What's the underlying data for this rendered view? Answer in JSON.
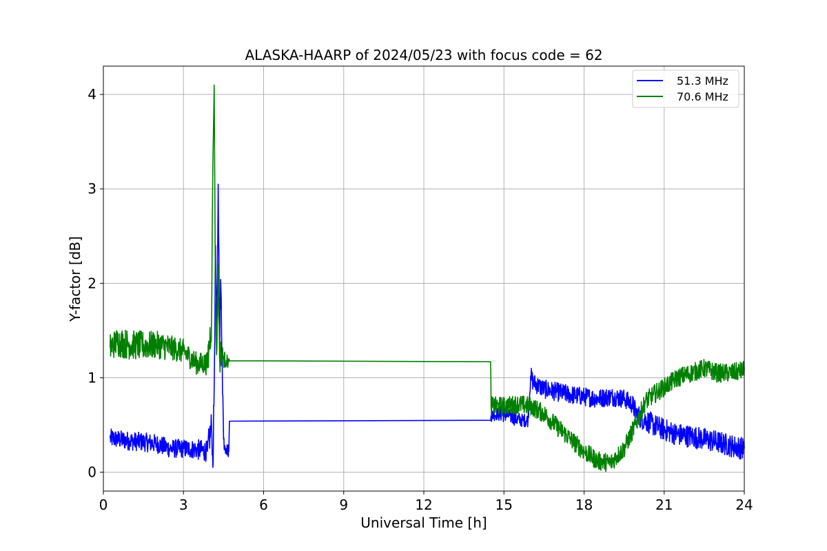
{
  "chart_data": {
    "type": "line",
    "title": "ALASKA-HAARP of 2024/05/23 with focus code = 62",
    "xlabel": "Universal Time [h]",
    "ylabel": "Y-factor [dB]",
    "xlim": [
      0,
      24
    ],
    "ylim": [
      -0.2,
      4.3
    ],
    "xticks": [
      0,
      3,
      6,
      9,
      12,
      15,
      18,
      21,
      24
    ],
    "yticks": [
      0,
      1,
      2,
      3,
      4
    ],
    "grid": true,
    "legend_position": "top-right",
    "series": [
      {
        "name": "51.3 MHz",
        "color": "#0000ff",
        "x": [
          0.25,
          0.5,
          1.0,
          1.5,
          2.0,
          2.5,
          3.0,
          3.5,
          3.9,
          4.05,
          4.1,
          4.15,
          4.2,
          4.25,
          4.3,
          4.35,
          4.4,
          4.45,
          4.5,
          4.55,
          4.6,
          4.7,
          4.72,
          14.5,
          14.52,
          14.8,
          15.2,
          15.6,
          15.9,
          16.0,
          16.1,
          16.5,
          17.0,
          17.5,
          18.0,
          18.5,
          19.0,
          19.5,
          19.8,
          20.0,
          20.3,
          20.6,
          21.0,
          21.5,
          22.0,
          22.5,
          23.0,
          23.5,
          24.0
        ],
        "y": [
          0.36,
          0.35,
          0.33,
          0.32,
          0.3,
          0.25,
          0.25,
          0.24,
          0.22,
          0.5,
          0.05,
          0.9,
          2.4,
          1.3,
          3.05,
          1.5,
          1.95,
          1.2,
          0.35,
          0.28,
          0.25,
          0.22,
          0.54,
          0.55,
          0.6,
          0.62,
          0.6,
          0.55,
          0.55,
          1.02,
          0.95,
          0.88,
          0.85,
          0.82,
          0.8,
          0.78,
          0.8,
          0.78,
          0.72,
          0.6,
          0.55,
          0.5,
          0.45,
          0.4,
          0.38,
          0.35,
          0.32,
          0.28,
          0.25
        ],
        "noise": [
          0.1,
          0.1,
          0.1,
          0.1,
          0.1,
          0.1,
          0.1,
          0.1,
          0.12,
          0.2,
          0.0,
          0.3,
          0.2,
          0.3,
          0.0,
          0.3,
          0.2,
          0.3,
          0.1,
          0.08,
          0.08,
          0.06,
          0.0,
          0.0,
          0.05,
          0.08,
          0.08,
          0.08,
          0.06,
          0.1,
          0.1,
          0.1,
          0.1,
          0.1,
          0.1,
          0.1,
          0.1,
          0.1,
          0.1,
          0.12,
          0.12,
          0.12,
          0.12,
          0.12,
          0.12,
          0.12,
          0.12,
          0.12,
          0.12
        ]
      },
      {
        "name": "70.6 MHz",
        "color": "#008000",
        "x": [
          0.25,
          0.5,
          1.0,
          1.5,
          2.0,
          2.5,
          3.0,
          3.5,
          3.9,
          4.05,
          4.1,
          4.15,
          4.2,
          4.25,
          4.3,
          4.35,
          4.4,
          4.5,
          4.6,
          4.7,
          4.72,
          14.5,
          14.52,
          15.0,
          15.5,
          16.0,
          16.5,
          17.0,
          17.5,
          18.0,
          18.5,
          19.0,
          19.5,
          20.0,
          20.3,
          20.6,
          21.0,
          21.5,
          22.0,
          22.5,
          23.0,
          23.5,
          24.0
        ],
        "y": [
          1.32,
          1.38,
          1.35,
          1.34,
          1.35,
          1.32,
          1.28,
          1.15,
          1.15,
          1.6,
          3.25,
          4.1,
          1.8,
          1.3,
          2.2,
          1.2,
          1.25,
          1.2,
          1.18,
          1.17,
          1.18,
          1.17,
          0.7,
          0.7,
          0.72,
          0.7,
          0.62,
          0.48,
          0.35,
          0.22,
          0.12,
          0.1,
          0.25,
          0.55,
          0.75,
          0.82,
          0.9,
          1.0,
          1.05,
          1.1,
          1.05,
          1.05,
          1.08
        ],
        "noise": [
          0.14,
          0.16,
          0.16,
          0.15,
          0.15,
          0.14,
          0.12,
          0.12,
          0.12,
          0.3,
          0.0,
          0.0,
          0.3,
          0.2,
          0.0,
          0.2,
          0.15,
          0.1,
          0.08,
          0.06,
          0.0,
          0.0,
          0.1,
          0.1,
          0.1,
          0.1,
          0.1,
          0.1,
          0.1,
          0.1,
          0.1,
          0.1,
          0.1,
          0.1,
          0.1,
          0.1,
          0.1,
          0.1,
          0.1,
          0.1,
          0.1,
          0.1,
          0.1
        ]
      }
    ]
  }
}
